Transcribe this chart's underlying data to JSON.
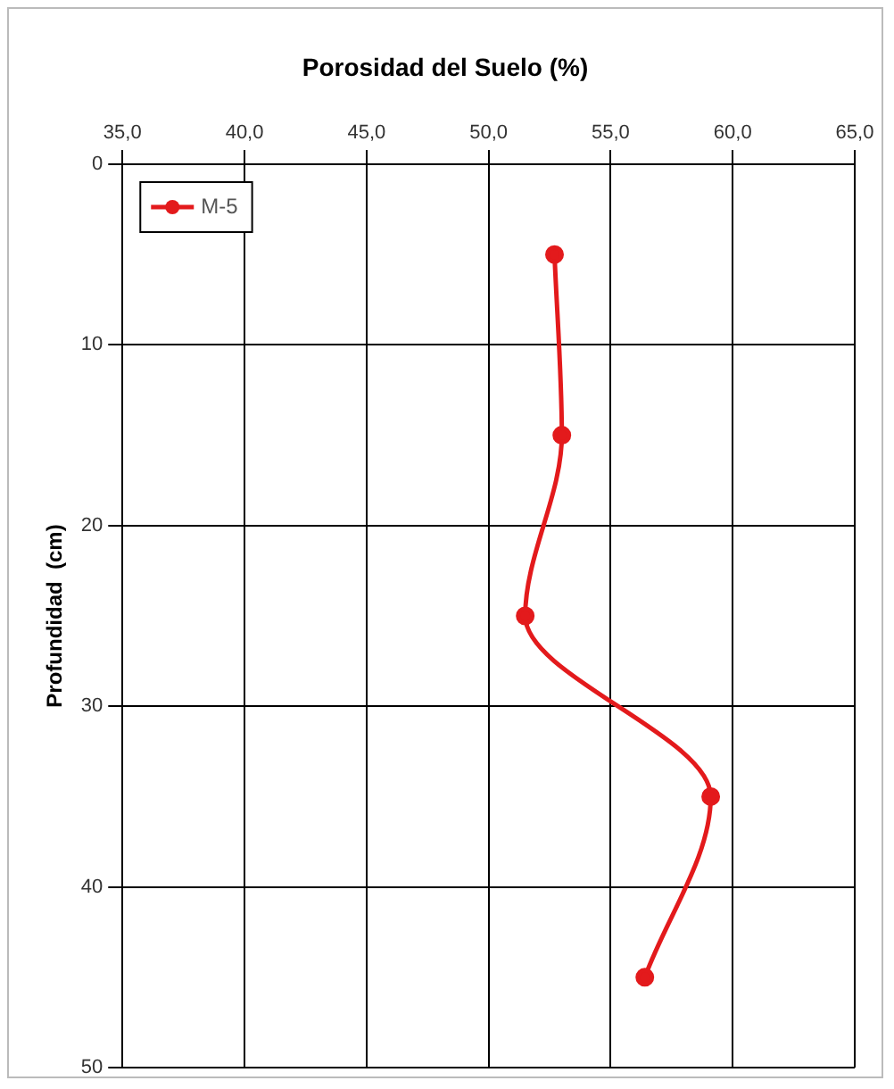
{
  "chart_data": {
    "type": "line",
    "title": "Porosidad del Suelo (%)",
    "ylabel": "Profundidad  (cm)",
    "series": [
      {
        "name": "M-5",
        "color": "#e31a1c",
        "x": [
          52.7,
          53.0,
          51.5,
          59.1,
          56.4
        ],
        "values": [
          5,
          15,
          25,
          35,
          45
        ]
      }
    ],
    "xlim": [
      35,
      65
    ],
    "xticks": [
      {
        "value": 35,
        "label": "35,0"
      },
      {
        "value": 40,
        "label": "40,0"
      },
      {
        "value": 45,
        "label": "45,0"
      },
      {
        "value": 50,
        "label": "50,0"
      },
      {
        "value": 55,
        "label": "55,0"
      },
      {
        "value": 60,
        "label": "60,0"
      },
      {
        "value": 65,
        "label": "65,0"
      }
    ],
    "ylim": [
      50,
      0
    ],
    "yticks": [
      0,
      10,
      20,
      30,
      40,
      50
    ],
    "grid": true,
    "legend": "top left",
    "marker": "circle",
    "line_style": "solid"
  }
}
